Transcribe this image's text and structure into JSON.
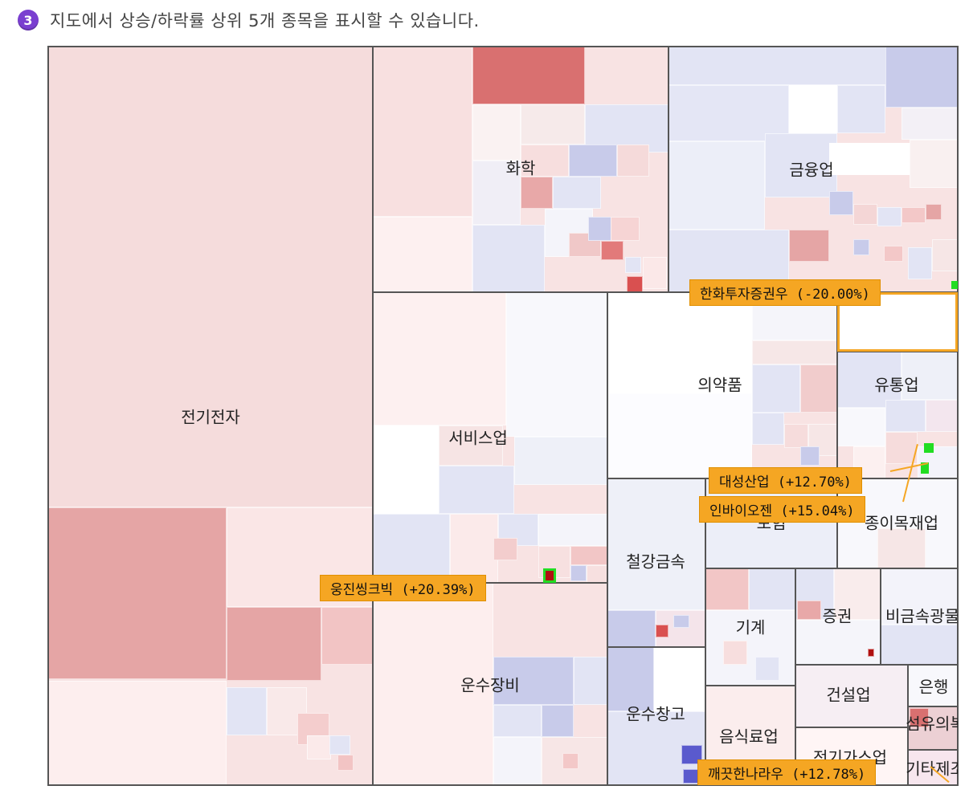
{
  "header": {
    "step_number": "3",
    "text": "지도에서 상승/하락률 상위 5개 종목을 표시할 수 있습니다."
  },
  "colors": {
    "rise_strong": "#d97070",
    "rise_mid": "#e5a5a5",
    "rise_light": "#f5dcdc",
    "fall_light": "#e2e4f4",
    "fall_mid": "#c8cbea",
    "callout_bg": "#f5a623",
    "marker_green": "#22dd22"
  },
  "sectors": [
    {
      "id": "electronics",
      "label": "전기전자"
    },
    {
      "id": "chemical",
      "label": "화학"
    },
    {
      "id": "finance",
      "label": "금융업"
    },
    {
      "id": "services",
      "label": "서비스업"
    },
    {
      "id": "pharma",
      "label": "의약품"
    },
    {
      "id": "distribution",
      "label": "유통업"
    },
    {
      "id": "insurance",
      "label": "보험"
    },
    {
      "id": "textile",
      "label": "종이목재업"
    },
    {
      "id": "steel",
      "label": "철강금속"
    },
    {
      "id": "machinery",
      "label": "기계"
    },
    {
      "id": "securities",
      "label": "증권"
    },
    {
      "id": "nonmetal",
      "label": "비금속광물"
    },
    {
      "id": "transport_eq",
      "label": "운수장비"
    },
    {
      "id": "transport_wh",
      "label": "운수창고"
    },
    {
      "id": "construction",
      "label": "건설업"
    },
    {
      "id": "bank",
      "label": "은행"
    },
    {
      "id": "food",
      "label": "음식료업"
    },
    {
      "id": "utilities",
      "label": "전기가스업"
    },
    {
      "id": "fibers",
      "label": "섬유의복"
    },
    {
      "id": "misc",
      "label": "기타제조"
    }
  ],
  "callouts": [
    {
      "id": "hanwha",
      "text": "한화투자증권우 (-20.00%)"
    },
    {
      "id": "daesung",
      "text": "대성산업 (+12.70%)"
    },
    {
      "id": "inbio",
      "text": "인바이오젠 (+15.04%)"
    },
    {
      "id": "woongjin",
      "text": "웅진씽크빅 (+20.39%)"
    },
    {
      "id": "clean",
      "text": "깨끗한나라우 (+12.78%)"
    }
  ]
}
